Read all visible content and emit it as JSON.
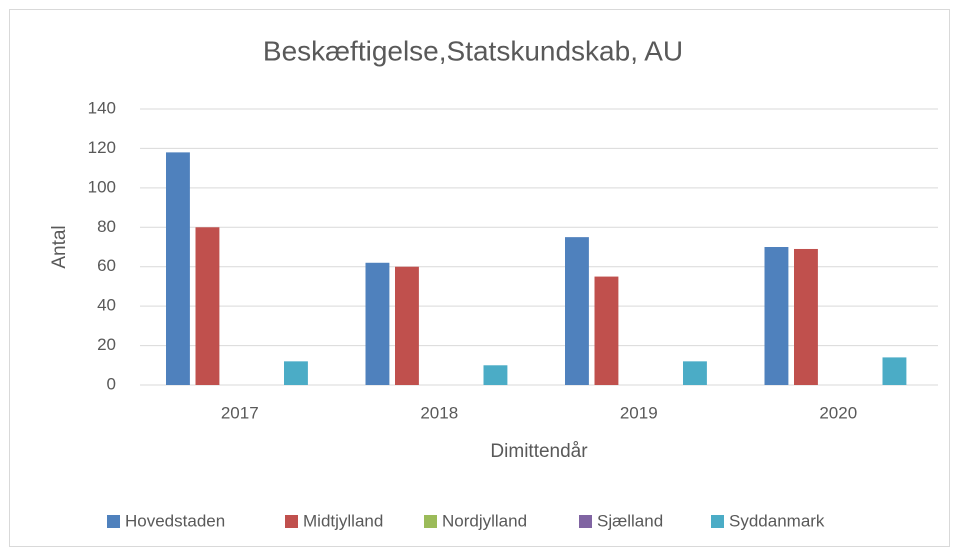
{
  "chart_data": {
    "type": "bar",
    "title": "Beskæftigelse,Statskundskab,  AU",
    "x_label": "Dimittendår",
    "y_label": "Antal",
    "categories": [
      "2017",
      "2018",
      "2019",
      "2020"
    ],
    "series": [
      {
        "name": "Hovedstaden",
        "color": "#4f81bd",
        "values": [
          118,
          62,
          75,
          70
        ]
      },
      {
        "name": "Midtjylland",
        "color": "#c0504d",
        "values": [
          80,
          60,
          55,
          69
        ]
      },
      {
        "name": "Nordjylland",
        "color": "#9bbb59",
        "values": [
          0,
          0,
          0,
          0
        ]
      },
      {
        "name": "Sjælland",
        "color": "#8064a2",
        "values": [
          0,
          0,
          0,
          0
        ]
      },
      {
        "name": "Syddanmark",
        "color": "#4bacc6",
        "values": [
          12,
          10,
          12,
          14
        ]
      }
    ],
    "ylim": [
      0,
      140
    ],
    "yticks": [
      0,
      20,
      40,
      60,
      80,
      100,
      120,
      140
    ],
    "grid": true,
    "legend": "bottom"
  }
}
